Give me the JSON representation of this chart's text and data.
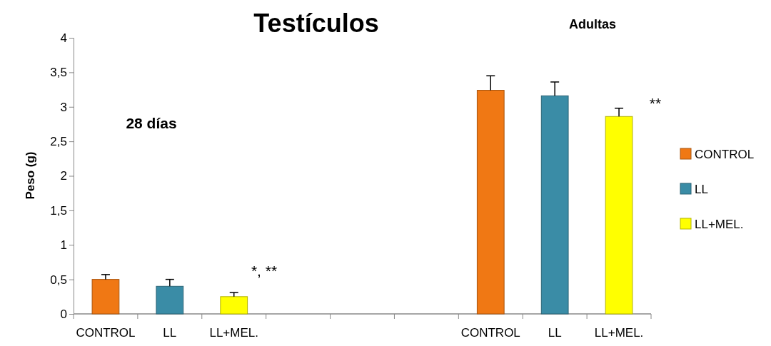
{
  "chart_data": {
    "type": "bar",
    "title": "Testículos",
    "ylabel": "Peso (g)",
    "categories": [
      "CONTROL",
      "LL",
      "LL+MEL.",
      null,
      null,
      null,
      "CONTROL",
      "LL",
      "LL+MEL."
    ],
    "series": [
      {
        "name": "CONTROL",
        "color": "#f07814",
        "values": [
          0.5,
          null,
          null,
          null,
          null,
          null,
          3.24,
          null,
          null
        ],
        "errors": [
          [
            0.5,
            0.57
          ],
          null,
          null,
          null,
          null,
          null,
          [
            3.24,
            3.45
          ],
          null,
          null
        ]
      },
      {
        "name": "LL",
        "color": "#3a8ca6",
        "values": [
          null,
          0.4,
          null,
          null,
          null,
          null,
          null,
          3.16,
          null
        ],
        "errors": [
          null,
          [
            0.4,
            0.5
          ],
          null,
          null,
          null,
          null,
          null,
          [
            3.16,
            3.36
          ],
          null
        ]
      },
      {
        "name": "LL+MEL.",
        "color": "#ffff00",
        "values": [
          null,
          null,
          0.25,
          null,
          null,
          null,
          null,
          null,
          2.86
        ],
        "errors": [
          null,
          null,
          [
            0.25,
            0.31
          ],
          null,
          null,
          null,
          null,
          null,
          [
            2.86,
            2.98
          ]
        ]
      }
    ],
    "ylim": [
      0,
      4
    ],
    "yticks": [
      0,
      {
        "value": 0.5,
        "label": "0,5"
      },
      1,
      {
        "value": 1.5,
        "label": "1,5"
      },
      2,
      {
        "value": 2.5,
        "label": "2,5"
      },
      3,
      {
        "value": 3.5,
        "label": "3,5"
      },
      4
    ],
    "annotations": [
      "28 días",
      "Adultas",
      "*, **",
      "**"
    ],
    "legend": "right",
    "grid": false
  }
}
